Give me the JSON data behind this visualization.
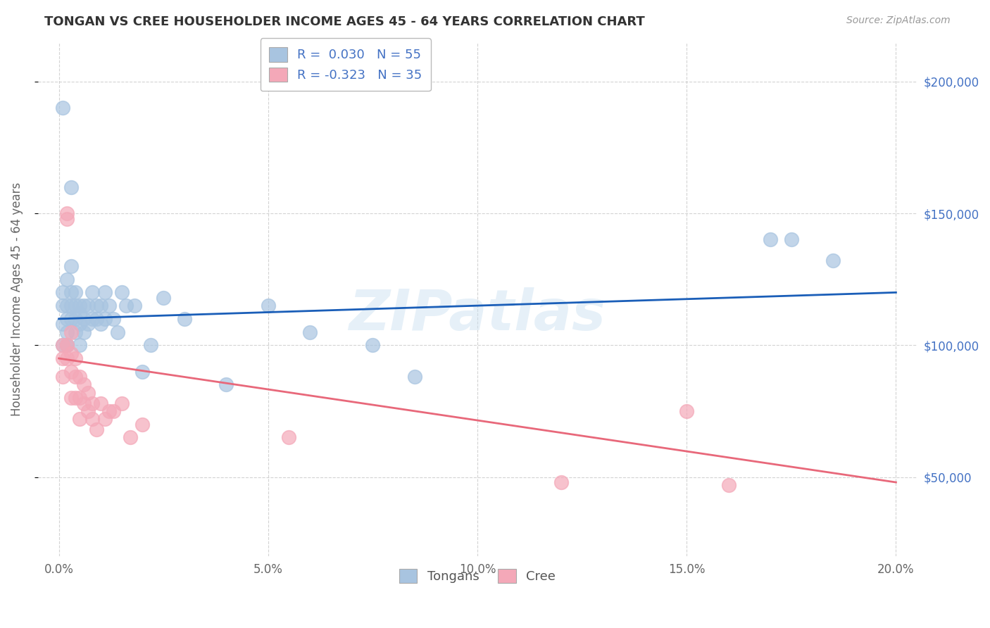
{
  "title": "TONGAN VS CREE HOUSEHOLDER INCOME AGES 45 - 64 YEARS CORRELATION CHART",
  "source": "Source: ZipAtlas.com",
  "ylabel": "Householder Income Ages 45 - 64 years",
  "xlabel_ticks": [
    "0.0%",
    "5.0%",
    "10.0%",
    "15.0%",
    "20.0%"
  ],
  "xlabel_vals": [
    0.0,
    0.05,
    0.1,
    0.15,
    0.2
  ],
  "ylabel_ticks": [
    "$50,000",
    "$100,000",
    "$150,000",
    "$200,000"
  ],
  "ylabel_vals": [
    50000,
    100000,
    150000,
    200000
  ],
  "xlim": [
    -0.005,
    0.205
  ],
  "ylim": [
    20000,
    215000
  ],
  "tongan_R": 0.03,
  "tongan_N": 55,
  "cree_R": -0.323,
  "cree_N": 35,
  "tongan_color": "#a8c4e0",
  "cree_color": "#f4a8b8",
  "tongan_line_color": "#1a5eb8",
  "cree_line_color": "#e8687a",
  "background_color": "#ffffff",
  "grid_color": "#c8c8c8",
  "watermark": "ZIPatlas",
  "tongan_line_x0": 0.0,
  "tongan_line_y0": 110000,
  "tongan_line_x1": 0.2,
  "tongan_line_y1": 120000,
  "cree_line_x0": 0.0,
  "cree_line_y0": 95000,
  "cree_line_x1": 0.2,
  "cree_line_y1": 48000,
  "tongan_x": [
    0.001,
    0.001,
    0.001,
    0.001,
    0.001,
    0.002,
    0.002,
    0.002,
    0.002,
    0.002,
    0.002,
    0.003,
    0.003,
    0.003,
    0.003,
    0.003,
    0.004,
    0.004,
    0.004,
    0.004,
    0.005,
    0.005,
    0.005,
    0.005,
    0.006,
    0.006,
    0.006,
    0.007,
    0.007,
    0.008,
    0.008,
    0.009,
    0.009,
    0.01,
    0.01,
    0.011,
    0.011,
    0.012,
    0.013,
    0.014,
    0.015,
    0.016,
    0.018,
    0.02,
    0.022,
    0.025,
    0.03,
    0.04,
    0.05,
    0.06,
    0.075,
    0.085,
    0.17,
    0.175,
    0.185
  ],
  "tongan_y": [
    190000,
    115000,
    120000,
    108000,
    100000,
    125000,
    115000,
    110000,
    105000,
    100000,
    100000,
    160000,
    130000,
    120000,
    115000,
    110000,
    120000,
    115000,
    110000,
    105000,
    115000,
    112000,
    108000,
    100000,
    115000,
    110000,
    105000,
    115000,
    108000,
    120000,
    110000,
    115000,
    110000,
    115000,
    108000,
    120000,
    110000,
    115000,
    110000,
    105000,
    120000,
    115000,
    115000,
    90000,
    100000,
    118000,
    110000,
    85000,
    115000,
    105000,
    100000,
    88000,
    140000,
    140000,
    132000
  ],
  "cree_x": [
    0.001,
    0.001,
    0.001,
    0.002,
    0.002,
    0.002,
    0.002,
    0.003,
    0.003,
    0.003,
    0.003,
    0.004,
    0.004,
    0.004,
    0.005,
    0.005,
    0.005,
    0.006,
    0.006,
    0.007,
    0.007,
    0.008,
    0.008,
    0.009,
    0.01,
    0.011,
    0.012,
    0.013,
    0.015,
    0.017,
    0.02,
    0.055,
    0.12,
    0.15,
    0.16
  ],
  "cree_y": [
    100000,
    95000,
    88000,
    150000,
    148000,
    100000,
    95000,
    105000,
    97000,
    90000,
    80000,
    95000,
    88000,
    80000,
    88000,
    80000,
    72000,
    85000,
    78000,
    82000,
    75000,
    78000,
    72000,
    68000,
    78000,
    72000,
    75000,
    75000,
    78000,
    65000,
    70000,
    65000,
    48000,
    75000,
    47000
  ]
}
